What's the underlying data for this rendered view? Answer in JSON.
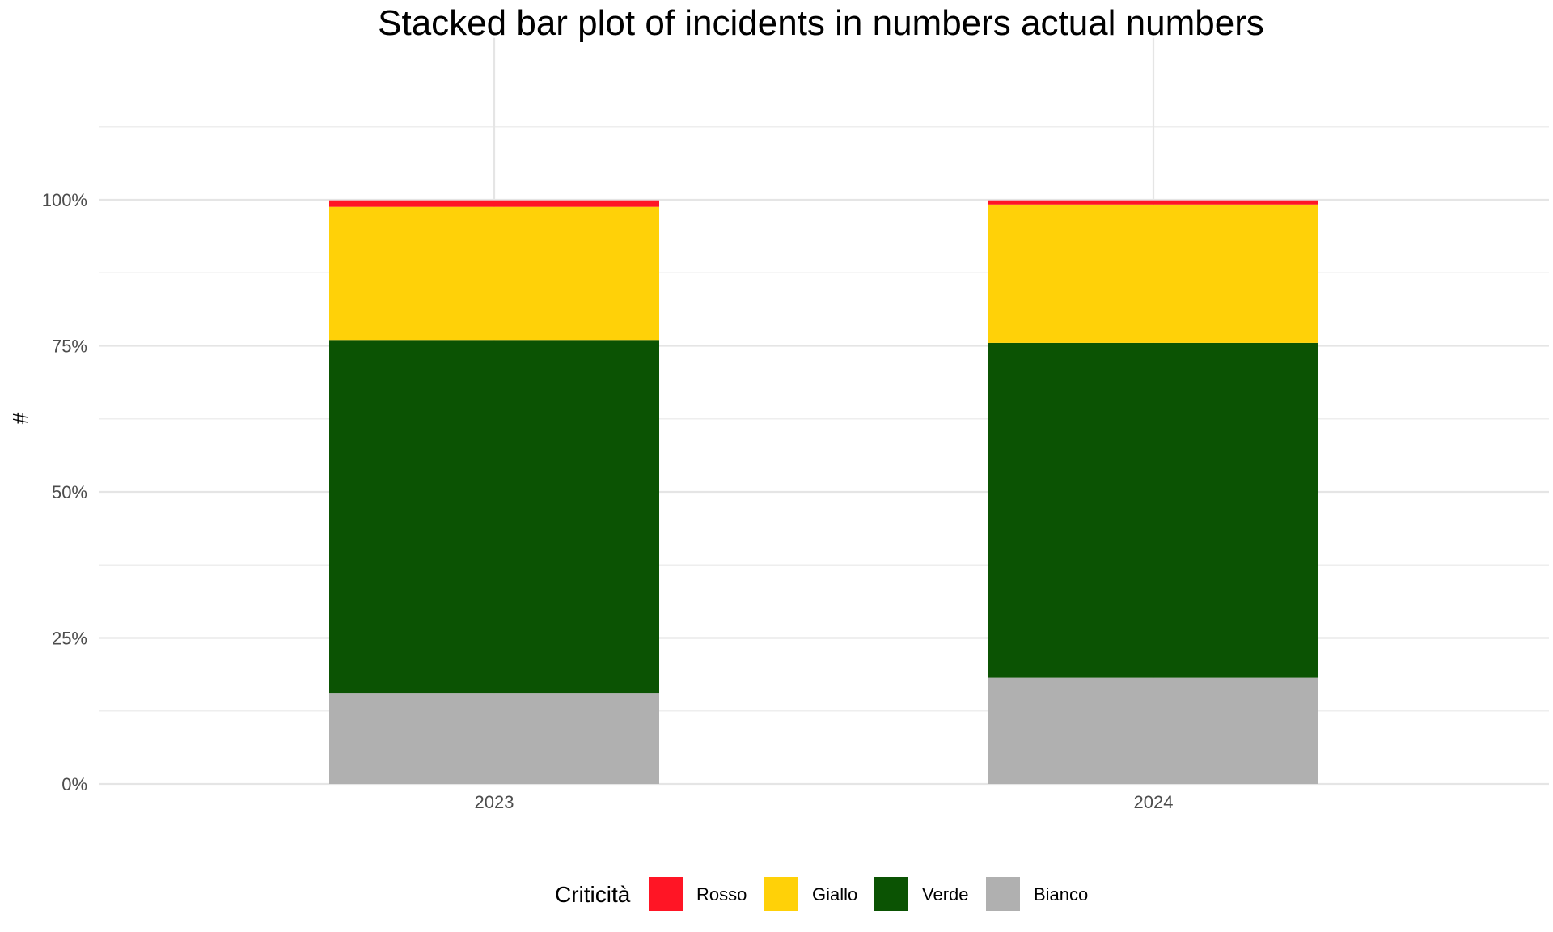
{
  "chart_data": {
    "type": "bar",
    "stacked": true,
    "title": "Stacked bar plot of incidents in numbers actual numbers",
    "xlabel": "",
    "ylabel": "#",
    "ylim": [
      0,
      1.25
    ],
    "y_ticks": [
      0,
      0.25,
      0.5,
      0.75,
      1.0
    ],
    "y_tick_labels": [
      "0%",
      "25%",
      "50%",
      "75%",
      "100%"
    ],
    "grid": true,
    "legend_position": "bottom",
    "legend_title": "Criticità",
    "categories": [
      "2023",
      "2024"
    ],
    "series": [
      {
        "name": "Bianco",
        "color": "#b0b0b0",
        "values": [
          0.155,
          0.182
        ]
      },
      {
        "name": "Verde",
        "color": "#0b5303",
        "values": [
          0.605,
          0.573
        ]
      },
      {
        "name": "Giallo",
        "color": "#ffd108",
        "values": [
          0.228,
          0.237
        ]
      },
      {
        "name": "Rosso",
        "color": "#ff1525",
        "values": [
          0.011,
          0.007
        ]
      }
    ],
    "legend_order": [
      "Rosso",
      "Giallo",
      "Verde",
      "Bianco"
    ]
  }
}
